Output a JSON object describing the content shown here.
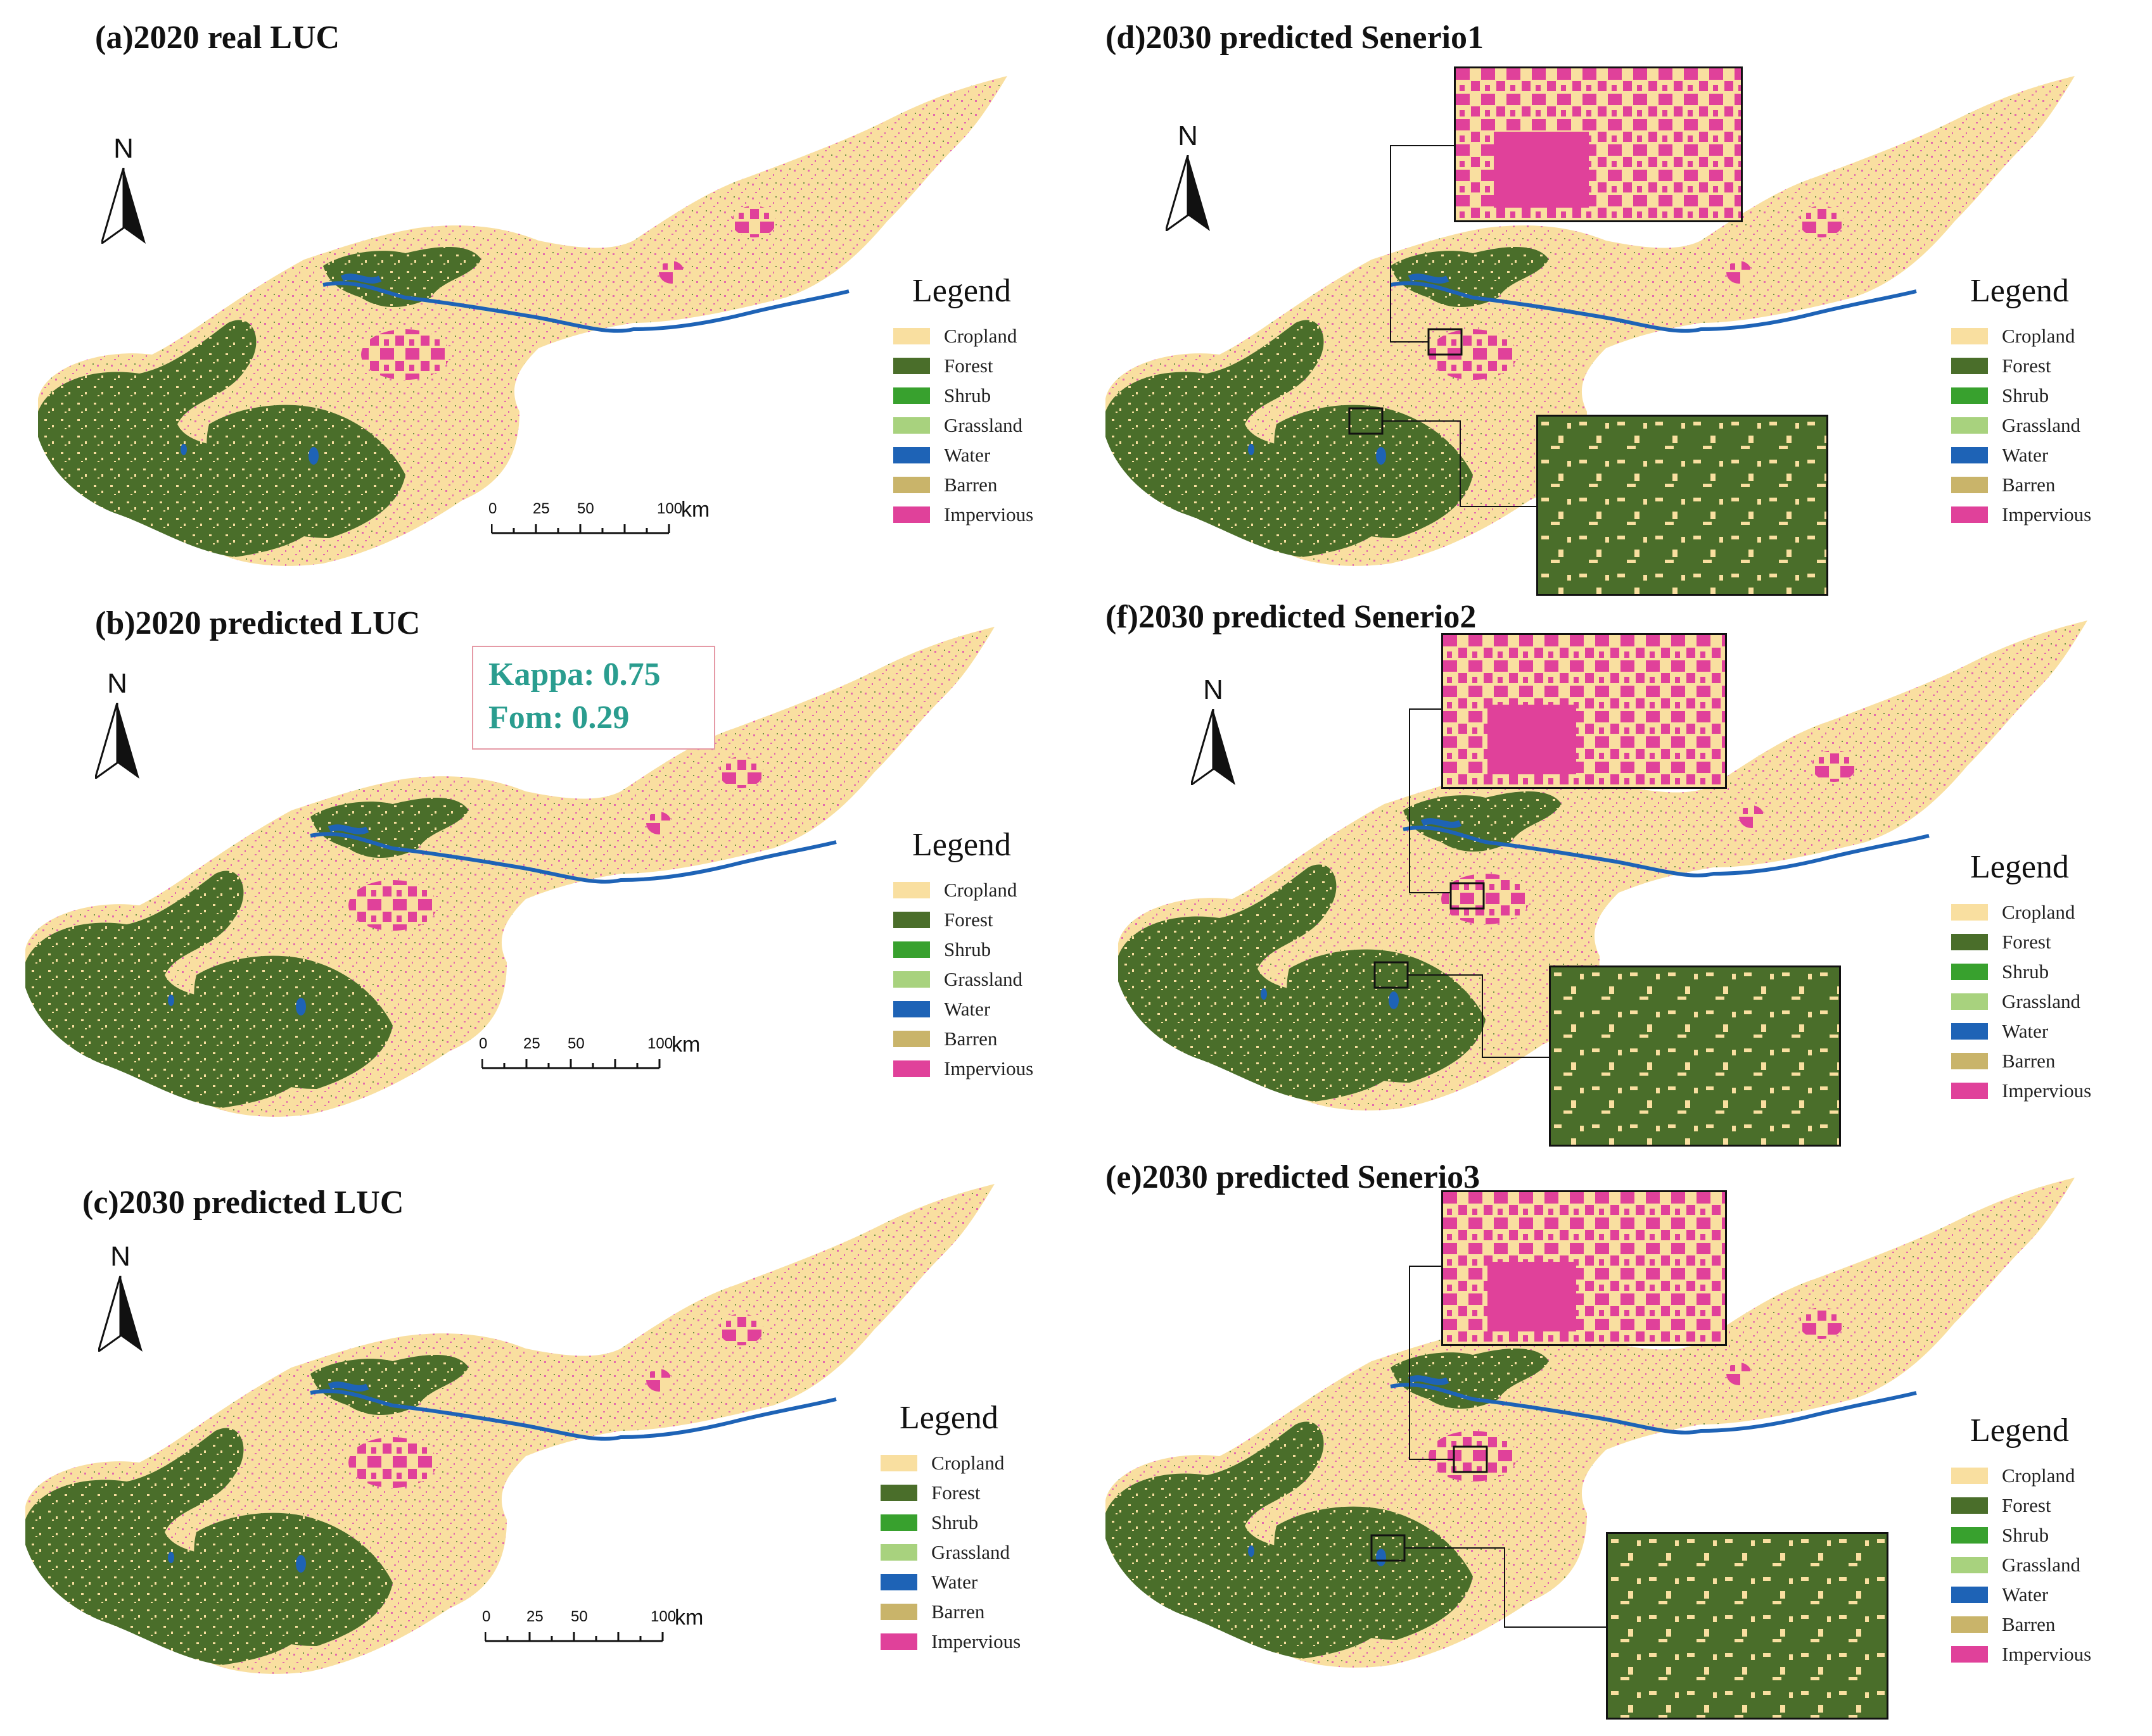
{
  "panels": [
    {
      "id": "a",
      "title": "(a)2020 real LUC"
    },
    {
      "id": "b",
      "title": "(b)2020 predicted LUC"
    },
    {
      "id": "c",
      "title": "(c)2030 predicted LUC"
    },
    {
      "id": "d",
      "title": "(d)2030 predicted Senerio1"
    },
    {
      "id": "f",
      "title": "(f)2030 predicted Senerio2"
    },
    {
      "id": "e",
      "title": "(e)2030 predicted Senerio3"
    }
  ],
  "north_label": "N",
  "legend": {
    "title": "Legend",
    "items": [
      {
        "label": "Cropland",
        "color": "#F9DFA0"
      },
      {
        "label": "Forest",
        "color": "#4A6E2A"
      },
      {
        "label": "Shrub",
        "color": "#38A12E"
      },
      {
        "label": "Grassland",
        "color": "#A8D27E"
      },
      {
        "label": "Water",
        "color": "#1E63B6"
      },
      {
        "label": "Barren",
        "color": "#C9B46A"
      },
      {
        "label": "Impervious",
        "color": "#E0419A"
      }
    ]
  },
  "scale": {
    "ticks": [
      "0",
      "25",
      "50",
      "100"
    ],
    "unit": "km"
  },
  "metrics": {
    "kappa": "Kappa: 0.75",
    "fom": "Fom: 0.29"
  }
}
